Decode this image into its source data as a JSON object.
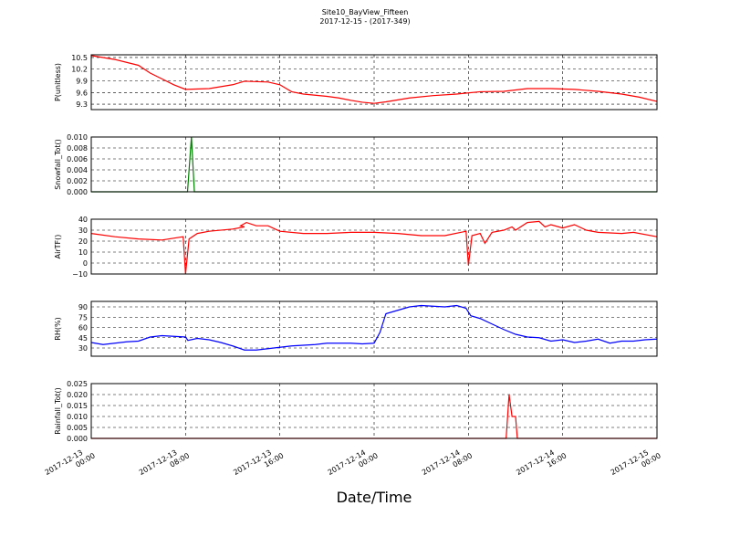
{
  "figure": {
    "title": "Site10_BayView_Fifteen",
    "subtitle": "2017-12-15 - (2017-349)",
    "xlabel": "Date/Time",
    "xlim": [
      "2017-12-13 00:00",
      "2017-12-15 00:00"
    ],
    "xticks": [
      "2017-12-13 00:00",
      "2017-12-13 08:00",
      "2017-12-13 16:00",
      "2017-12-14 00:00",
      "2017-12-14 08:00",
      "2017-12-14 16:00",
      "2017-12-15 00:00"
    ],
    "grid": true
  },
  "chart_data": [
    {
      "type": "line",
      "ylabel": "P(unitless)",
      "ylim": [
        9.16,
        10.57
      ],
      "yticks": [
        9.3,
        9.6,
        9.9,
        10.2,
        10.5
      ],
      "x": [
        "2017-12-13 00:00",
        "2017-12-13 02:00",
        "2017-12-13 04:00",
        "2017-12-13 05:00",
        "2017-12-13 06:00",
        "2017-12-13 07:00",
        "2017-12-13 08:00",
        "2017-12-13 10:00",
        "2017-12-13 12:00",
        "2017-12-13 13:00",
        "2017-12-13 15:00",
        "2017-12-13 16:00",
        "2017-12-13 17:00",
        "2017-12-13 18:00",
        "2017-12-13 20:00",
        "2017-12-13 21:00",
        "2017-12-13 22:00",
        "2017-12-13 23:00",
        "2017-12-14 00:00",
        "2017-12-14 01:00",
        "2017-12-14 03:00",
        "2017-12-14 05:00",
        "2017-12-14 07:00",
        "2017-12-14 09:00",
        "2017-12-14 11:00",
        "2017-12-14 13:00",
        "2017-12-14 15:00",
        "2017-12-14 17:00",
        "2017-12-14 19:00",
        "2017-12-14 21:00",
        "2017-12-14 22:30",
        "2017-12-15 00:00"
      ],
      "series": [
        {
          "color": "#ff0000",
          "values": [
            10.55,
            10.45,
            10.3,
            10.1,
            9.95,
            9.8,
            9.68,
            9.7,
            9.8,
            9.89,
            9.87,
            9.8,
            9.62,
            9.56,
            9.5,
            9.46,
            9.4,
            9.35,
            9.32,
            9.36,
            9.46,
            9.52,
            9.56,
            9.62,
            9.63,
            9.7,
            9.7,
            9.68,
            9.63,
            9.56,
            9.48,
            9.37
          ]
        }
      ]
    },
    {
      "type": "line",
      "ylabel": "Snowfall_Tot()",
      "ylim": [
        0,
        0.01
      ],
      "yticks": [
        {
          "value": 0,
          "label": "0.000"
        },
        {
          "value": 0.002,
          "label": "0.002"
        },
        {
          "value": 0.004,
          "label": "0.004"
        },
        {
          "value": 0.006,
          "label": "0.006"
        },
        {
          "value": 0.008,
          "label": "0.008"
        },
        {
          "value": 0.01,
          "label": "0.010"
        }
      ],
      "x": [
        "2017-12-13 00:00",
        "2017-12-13 08:10",
        "2017-12-13 08:30",
        "2017-12-13 08:45",
        "2017-12-15 00:00"
      ],
      "series": [
        {
          "color": "#008000",
          "values": [
            0,
            0,
            0.01,
            0,
            0
          ]
        }
      ]
    },
    {
      "type": "line",
      "ylabel": "AirTF()",
      "ylim": [
        -10,
        40
      ],
      "yticks": [
        {
          "value": -10,
          "label": "−10"
        },
        0,
        10,
        20,
        30,
        40
      ],
      "x": [
        "2017-12-13 00:00",
        "2017-12-13 02:00",
        "2017-12-13 04:00",
        "2017-12-13 06:00",
        "2017-12-13 07:48",
        "2017-12-13 08:00",
        "2017-12-13 08:18",
        "2017-12-13 09:00",
        "2017-12-13 10:00",
        "2017-12-13 12:00",
        "2017-12-13 13:00",
        "2017-12-13 12:40",
        "2017-12-13 13:10",
        "2017-12-13 14:00",
        "2017-12-13 15:00",
        "2017-12-13 16:00",
        "2017-12-13 18:00",
        "2017-12-13 20:00",
        "2017-12-13 22:00",
        "2017-12-14 00:00",
        "2017-12-14 02:00",
        "2017-12-14 04:00",
        "2017-12-14 06:00",
        "2017-12-14 07:48",
        "2017-12-14 08:00",
        "2017-12-14 08:18",
        "2017-12-14 09:00",
        "2017-12-14 09:24",
        "2017-12-14 10:00",
        "2017-12-14 11:00",
        "2017-12-14 11:42",
        "2017-12-14 12:00",
        "2017-12-14 13:00",
        "2017-12-14 14:00",
        "2017-12-14 14:30",
        "2017-12-14 15:00",
        "2017-12-14 16:00",
        "2017-12-14 17:00",
        "2017-12-14 18:00",
        "2017-12-14 19:00",
        "2017-12-14 21:00",
        "2017-12-14 22:00",
        "2017-12-15 00:00"
      ],
      "series": [
        {
          "color": "#ff0000",
          "values": [
            27,
            24,
            22,
            21,
            24,
            -10,
            22,
            27,
            29,
            31,
            33,
            34,
            37,
            34,
            34,
            29,
            27,
            27,
            28,
            28,
            27,
            25,
            25,
            29,
            -2,
            25,
            27,
            18,
            28,
            30,
            33,
            30,
            37,
            38,
            33,
            35,
            32,
            35,
            30,
            28,
            27,
            28,
            24
          ]
        }
      ]
    },
    {
      "type": "line",
      "ylabel": "RH(%)",
      "ylim": [
        18,
        98
      ],
      "yticks": [
        30,
        45,
        60,
        75,
        90
      ],
      "x": [
        "2017-12-13 00:00",
        "2017-12-13 01:00",
        "2017-12-13 03:00",
        "2017-12-13 04:00",
        "2017-12-13 05:00",
        "2017-12-13 06:00",
        "2017-12-13 08:00",
        "2017-12-13 08:12",
        "2017-12-13 09:00",
        "2017-12-13 10:00",
        "2017-12-13 11:00",
        "2017-12-13 12:00",
        "2017-12-13 13:00",
        "2017-12-13 14:00",
        "2017-12-13 15:00",
        "2017-12-13 16:00",
        "2017-12-13 17:00",
        "2017-12-13 19:00",
        "2017-12-13 20:00",
        "2017-12-13 22:00",
        "2017-12-13 23:00",
        "2017-12-14 00:00",
        "2017-12-14 00:30",
        "2017-12-14 01:00",
        "2017-12-14 02:00",
        "2017-12-14 03:00",
        "2017-12-14 04:00",
        "2017-12-14 06:00",
        "2017-12-14 07:00",
        "2017-12-14 07:48",
        "2017-12-14 08:12",
        "2017-12-14 09:00",
        "2017-12-14 10:00",
        "2017-12-14 11:00",
        "2017-12-14 12:00",
        "2017-12-14 13:00",
        "2017-12-14 14:00",
        "2017-12-14 15:00",
        "2017-12-14 16:00",
        "2017-12-14 17:00",
        "2017-12-14 18:00",
        "2017-12-14 19:00",
        "2017-12-14 20:00",
        "2017-12-14 21:00",
        "2017-12-14 22:00",
        "2017-12-14 23:00",
        "2017-12-15 00:00"
      ],
      "series": [
        {
          "color": "#0000ff",
          "values": [
            38,
            35,
            39,
            40,
            46,
            48,
            46,
            41,
            44,
            42,
            38,
            33,
            27,
            27,
            29,
            31,
            33,
            35,
            37,
            37,
            36,
            37,
            53,
            80,
            85,
            90,
            92,
            90,
            92,
            88,
            77,
            73,
            65,
            57,
            50,
            46,
            45,
            40,
            42,
            38,
            40,
            43,
            37,
            40,
            40,
            42,
            43
          ]
        }
      ]
    },
    {
      "type": "line",
      "ylabel": "Rainfall_Tot()",
      "ylim": [
        0,
        0.025
      ],
      "yticks": [
        {
          "value": 0,
          "label": "0.000"
        },
        {
          "value": 0.005,
          "label": "0.005"
        },
        {
          "value": 0.01,
          "label": "0.010"
        },
        {
          "value": 0.015,
          "label": "0.015"
        },
        {
          "value": 0.02,
          "label": "0.020"
        },
        {
          "value": 0.025,
          "label": "0.025"
        }
      ],
      "x": [
        "2017-12-13 00:00",
        "2017-12-14 11:12",
        "2017-12-14 11:27",
        "2017-12-14 11:42",
        "2017-12-14 12:00",
        "2017-12-14 12:09",
        "2017-12-15 00:00"
      ],
      "series": [
        {
          "color": "#ff0000",
          "values": [
            0,
            0,
            0.02,
            0.01,
            0.01,
            0,
            0
          ]
        }
      ]
    }
  ]
}
